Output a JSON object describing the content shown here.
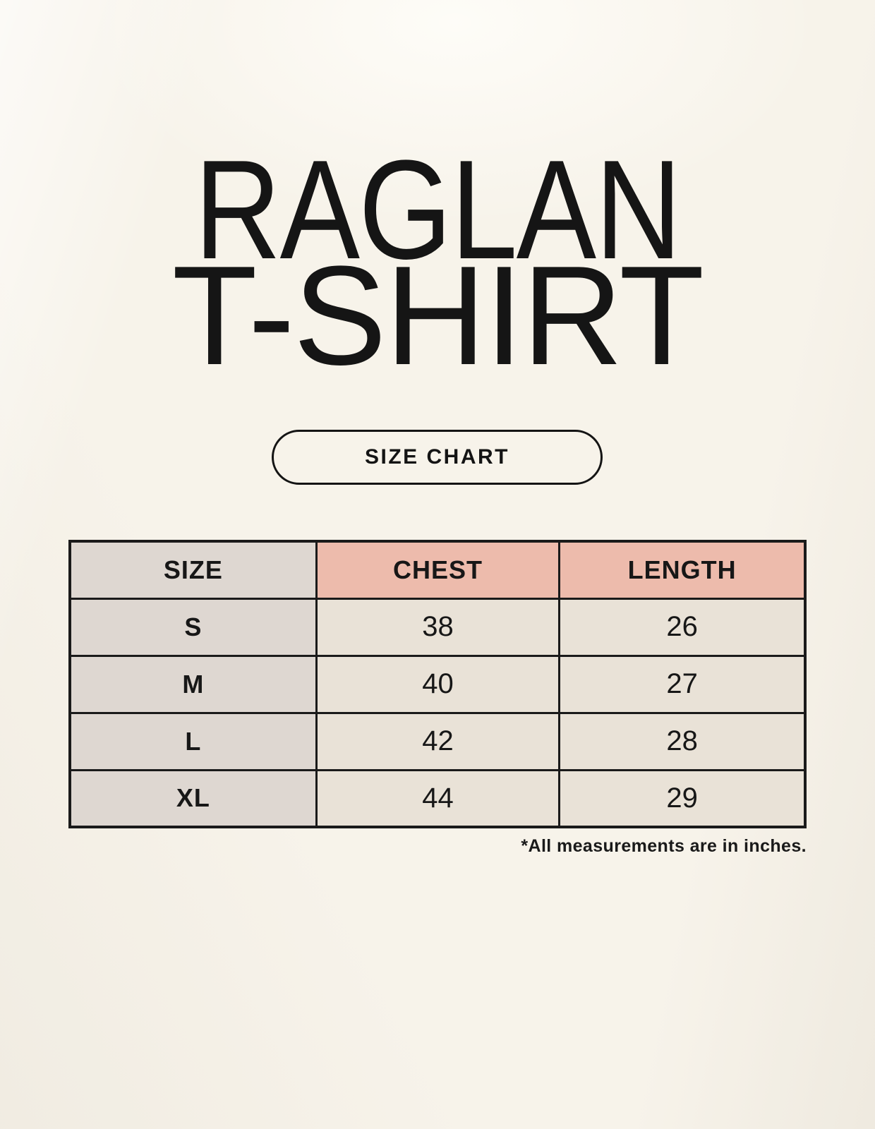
{
  "page": {
    "background_color": "#f7f3ea",
    "text_color": "#171717"
  },
  "title": {
    "line1": "RAGLAN",
    "line2": "T-SHIRT"
  },
  "size_chart_button": {
    "label": "SIZE CHART"
  },
  "size_table": {
    "headers": [
      "SIZE",
      "CHEST",
      "LENGTH"
    ],
    "rows": [
      {
        "size": "S",
        "chest": "38",
        "length": "26"
      },
      {
        "size": "M",
        "chest": "40",
        "length": "27"
      },
      {
        "size": "L",
        "chest": "42",
        "length": "28"
      },
      {
        "size": "XL",
        "chest": "44",
        "length": "29"
      }
    ],
    "colors": {
      "header_size_bg": "#ded7d1",
      "header_measure_bg": "#edbbac",
      "size_column_bg": "#ded7d1",
      "value_cell_bg": "#e9e2d7",
      "border": "#1a1a1a"
    }
  },
  "footnote": "*All measurements are in inches.",
  "chart_data": {
    "type": "table",
    "title": "RAGLAN T-SHIRT",
    "columns": [
      "SIZE",
      "CHEST",
      "LENGTH"
    ],
    "rows": [
      [
        "S",
        38,
        26
      ],
      [
        "M",
        40,
        27
      ],
      [
        "L",
        42,
        28
      ],
      [
        "XL",
        44,
        29
      ]
    ],
    "units": "inches"
  }
}
